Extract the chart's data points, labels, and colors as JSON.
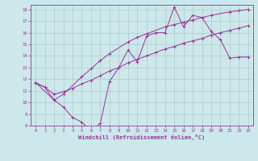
{
  "background_color": "#cce8ea",
  "grid_color": "#aacccc",
  "line_color": "#993399",
  "xlim": [
    -0.5,
    23.5
  ],
  "ylim": [
    8,
    18.4
  ],
  "xlabel": "Windchill (Refroidissement éolien,°C)",
  "xticks": [
    0,
    1,
    2,
    3,
    4,
    5,
    6,
    7,
    8,
    9,
    10,
    11,
    12,
    13,
    14,
    15,
    16,
    17,
    18,
    19,
    20,
    21,
    22,
    23
  ],
  "yticks": [
    8,
    9,
    10,
    11,
    12,
    13,
    14,
    15,
    16,
    17,
    18
  ],
  "line1_x": [
    0,
    1,
    2,
    3,
    4,
    5,
    6,
    7,
    8,
    9,
    10,
    11,
    12,
    13,
    14,
    15,
    16,
    17,
    18,
    19,
    20,
    21,
    22,
    23
  ],
  "line1_y": [
    11.7,
    11.3,
    10.2,
    9.6,
    8.7,
    8.3,
    7.5,
    8.2,
    11.8,
    13.0,
    14.5,
    13.5,
    15.7,
    16.0,
    16.0,
    18.2,
    16.5,
    17.5,
    17.3,
    16.1,
    15.4,
    13.8,
    13.9,
    13.9
  ],
  "line2_x": [
    0,
    2,
    3,
    5,
    6,
    7,
    8,
    10,
    11,
    12,
    14,
    15,
    16,
    17,
    18,
    19,
    21,
    22,
    23
  ],
  "line2_y": [
    11.7,
    10.2,
    10.7,
    12.2,
    12.9,
    13.6,
    14.2,
    15.2,
    15.6,
    15.9,
    16.5,
    16.7,
    16.9,
    17.1,
    17.3,
    17.5,
    17.8,
    17.9,
    18.0
  ],
  "line3_x": [
    0,
    1,
    2,
    3,
    4,
    5,
    6,
    7,
    8,
    9,
    10,
    11,
    12,
    13,
    14,
    15,
    16,
    17,
    18,
    19,
    20,
    21,
    22,
    23
  ],
  "line3_y": [
    11.7,
    11.3,
    10.7,
    10.9,
    11.2,
    11.6,
    11.9,
    12.3,
    12.7,
    13.0,
    13.4,
    13.7,
    14.0,
    14.3,
    14.6,
    14.8,
    15.1,
    15.3,
    15.5,
    15.8,
    16.0,
    16.2,
    16.4,
    16.6
  ]
}
